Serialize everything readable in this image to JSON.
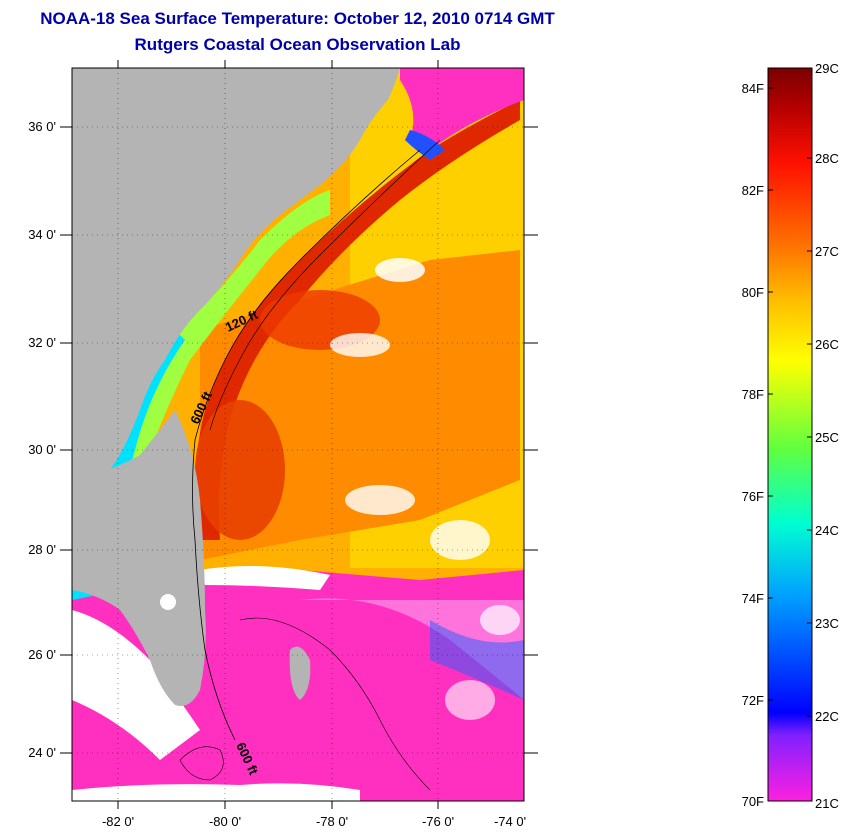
{
  "title": {
    "line1": "NOAA-18 Sea Surface Temperature:  October 12, 2010 0714 GMT",
    "line2": "Rutgers Coastal Ocean Observation Lab"
  },
  "map": {
    "lat_labels": [
      "36 0'",
      "34 0'",
      "32 0'",
      "30 0'",
      "28 0'",
      "26 0'",
      "24 0'"
    ],
    "lon_labels": [
      "-82 0'",
      "-80 0'",
      "-78 0'",
      "-76 0'",
      "-74 0'"
    ],
    "contour_labels": [
      "120 ft",
      "600 ft",
      "600 ft"
    ],
    "colors": {
      "land": "#b4b4b4",
      "warm": "#e03000",
      "cold": "#ff30c0",
      "cloud": "#ffffff"
    }
  },
  "colorbar": {
    "fahrenheit_labels": [
      "84F",
      "82F",
      "80F",
      "78F",
      "76F",
      "74F",
      "72F",
      "70F"
    ],
    "celsius_labels": [
      "29C",
      "28C",
      "27C",
      "26C",
      "25C",
      "24C",
      "23C",
      "22C",
      "21C"
    ]
  }
}
